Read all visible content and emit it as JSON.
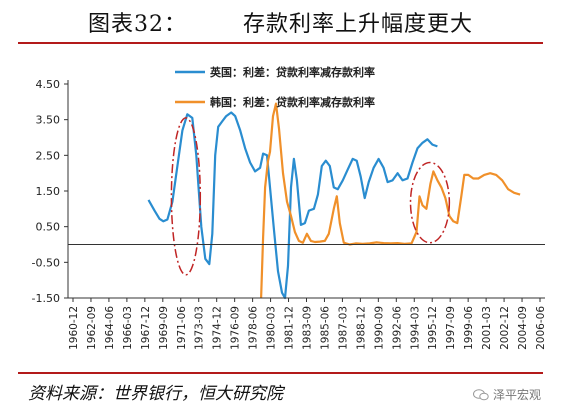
{
  "header": {
    "title": "图表32：       存款利率上升幅度更大"
  },
  "footer": {
    "source": "资料来源：世界银行，恒大研究院",
    "watermark": "泽平宏观"
  },
  "chart_data": {
    "type": "line",
    "title": "",
    "xlabel": "",
    "ylabel": "",
    "ylim": [
      -1.5,
      4.5
    ],
    "yticks": [
      -1.5,
      -0.5,
      0.5,
      1.5,
      2.5,
      3.5,
      4.5
    ],
    "ytick_labels": [
      "-1.50",
      "-0.50",
      "0.50",
      "1.50",
      "2.50",
      "3.50",
      "4.50"
    ],
    "xtick_labels": [
      "1960-12",
      "1962-09",
      "1964-06",
      "1966-03",
      "1967-12",
      "1969-09",
      "1971-06",
      "1973-03",
      "1974-12",
      "1976-09",
      "1978-06",
      "1980-03",
      "1981-12",
      "1983-09",
      "1985-06",
      "1987-03",
      "1988-12",
      "1990-09",
      "1992-06",
      "1994-03",
      "1995-12",
      "1997-09",
      "1999-06",
      "2001-03",
      "2002-12",
      "2004-09",
      "2006-06"
    ],
    "xrange": [
      1960.92,
      2008.8
    ],
    "grid": false,
    "legend_position": "top",
    "series": [
      {
        "name": "英国：利差：贷款利率减存款利率",
        "color": "#2a8dd0",
        "points": [
          [
            1969.0,
            1.25
          ],
          [
            1969.6,
            0.95
          ],
          [
            1970.1,
            0.72
          ],
          [
            1970.5,
            0.65
          ],
          [
            1970.9,
            0.7
          ],
          [
            1971.4,
            1.2
          ],
          [
            1971.9,
            2.2
          ],
          [
            1972.4,
            3.2
          ],
          [
            1972.9,
            3.65
          ],
          [
            1973.4,
            3.55
          ],
          [
            1973.8,
            2.5
          ],
          [
            1974.3,
            0.5
          ],
          [
            1974.7,
            -0.4
          ],
          [
            1975.1,
            -0.55
          ],
          [
            1975.4,
            0.3
          ],
          [
            1975.7,
            2.5
          ],
          [
            1976.0,
            3.3
          ],
          [
            1976.4,
            3.45
          ],
          [
            1976.8,
            3.6
          ],
          [
            1977.3,
            3.7
          ],
          [
            1977.7,
            3.6
          ],
          [
            1978.2,
            3.2
          ],
          [
            1978.7,
            2.7
          ],
          [
            1979.2,
            2.3
          ],
          [
            1979.7,
            2.05
          ],
          [
            1980.2,
            2.15
          ],
          [
            1980.5,
            2.55
          ],
          [
            1980.9,
            2.5
          ],
          [
            1981.2,
            1.6
          ],
          [
            1981.6,
            0.4
          ],
          [
            1982.0,
            -0.75
          ],
          [
            1982.4,
            -1.35
          ],
          [
            1982.7,
            -1.5
          ],
          [
            1983.0,
            -0.6
          ],
          [
            1983.3,
            1.6
          ],
          [
            1983.6,
            2.4
          ],
          [
            1983.9,
            1.8
          ],
          [
            1984.3,
            0.55
          ],
          [
            1984.7,
            0.6
          ],
          [
            1985.1,
            0.95
          ],
          [
            1985.6,
            1.0
          ],
          [
            1986.0,
            1.4
          ],
          [
            1986.4,
            2.2
          ],
          [
            1986.8,
            2.35
          ],
          [
            1987.2,
            2.2
          ],
          [
            1987.6,
            1.6
          ],
          [
            1988.0,
            1.55
          ],
          [
            1988.5,
            1.8
          ],
          [
            1989.0,
            2.1
          ],
          [
            1989.5,
            2.4
          ],
          [
            1989.9,
            2.35
          ],
          [
            1990.3,
            1.9
          ],
          [
            1990.7,
            1.3
          ],
          [
            1991.1,
            1.75
          ],
          [
            1991.6,
            2.15
          ],
          [
            1992.1,
            2.4
          ],
          [
            1992.6,
            2.15
          ],
          [
            1993.0,
            1.75
          ],
          [
            1993.5,
            1.8
          ],
          [
            1994.0,
            2.0
          ],
          [
            1994.5,
            1.8
          ],
          [
            1995.0,
            1.85
          ],
          [
            1995.5,
            2.3
          ],
          [
            1996.0,
            2.7
          ],
          [
            1996.5,
            2.85
          ],
          [
            1997.0,
            2.95
          ],
          [
            1997.5,
            2.8
          ],
          [
            1998.0,
            2.75
          ]
        ]
      },
      {
        "name": "韩国：利差：贷款利率减存款利率",
        "color": "#f0902a",
        "points": [
          [
            1980.3,
            -1.5
          ],
          [
            1980.5,
            0.2
          ],
          [
            1980.7,
            1.6
          ],
          [
            1981.0,
            2.35
          ],
          [
            1981.2,
            2.6
          ],
          [
            1981.5,
            3.6
          ],
          [
            1981.8,
            3.95
          ],
          [
            1982.1,
            3.25
          ],
          [
            1982.5,
            2.0
          ],
          [
            1982.9,
            1.2
          ],
          [
            1983.3,
            0.8
          ],
          [
            1983.7,
            0.35
          ],
          [
            1984.1,
            0.1
          ],
          [
            1984.5,
            0.05
          ],
          [
            1984.9,
            0.3
          ],
          [
            1985.3,
            0.1
          ],
          [
            1985.7,
            0.07
          ],
          [
            1986.2,
            0.08
          ],
          [
            1986.7,
            0.1
          ],
          [
            1987.1,
            0.3
          ],
          [
            1987.6,
            1.0
          ],
          [
            1987.9,
            1.35
          ],
          [
            1988.2,
            0.6
          ],
          [
            1988.6,
            0.05
          ],
          [
            1989.2,
            0.0
          ],
          [
            1989.8,
            0.03
          ],
          [
            1990.5,
            0.02
          ],
          [
            1991.2,
            0.03
          ],
          [
            1991.9,
            0.06
          ],
          [
            1992.6,
            0.04
          ],
          [
            1993.3,
            0.03
          ],
          [
            1994.0,
            0.04
          ],
          [
            1994.7,
            0.02
          ],
          [
            1995.4,
            0.03
          ],
          [
            1995.9,
            0.35
          ],
          [
            1996.2,
            1.35
          ],
          [
            1996.5,
            1.1
          ],
          [
            1996.9,
            1.0
          ],
          [
            1997.3,
            1.7
          ],
          [
            1997.6,
            2.05
          ],
          [
            1998.0,
            1.8
          ],
          [
            1998.4,
            1.6
          ],
          [
            1998.8,
            1.3
          ],
          [
            1999.2,
            0.8
          ],
          [
            1999.6,
            0.65
          ],
          [
            2000.0,
            0.6
          ],
          [
            2000.4,
            1.35
          ],
          [
            2000.7,
            1.95
          ],
          [
            2001.1,
            1.95
          ],
          [
            2001.6,
            1.85
          ],
          [
            2002.1,
            1.85
          ],
          [
            2002.7,
            1.95
          ],
          [
            2003.3,
            2.0
          ],
          [
            2003.9,
            1.95
          ],
          [
            2004.5,
            1.8
          ],
          [
            2005.1,
            1.55
          ],
          [
            2005.7,
            1.45
          ],
          [
            2006.3,
            1.4
          ]
        ]
      }
    ],
    "annotations": [
      {
        "type": "dash-dot-ellipse",
        "color": "#c02525",
        "x_range": [
          1971.3,
          1974.2
        ],
        "y_range": [
          -0.85,
          3.55
        ]
      },
      {
        "type": "dash-dot-ellipse",
        "color": "#c02525",
        "x_range": [
          1995.3,
          1999.2
        ],
        "y_range": [
          0.05,
          2.3
        ]
      }
    ]
  }
}
